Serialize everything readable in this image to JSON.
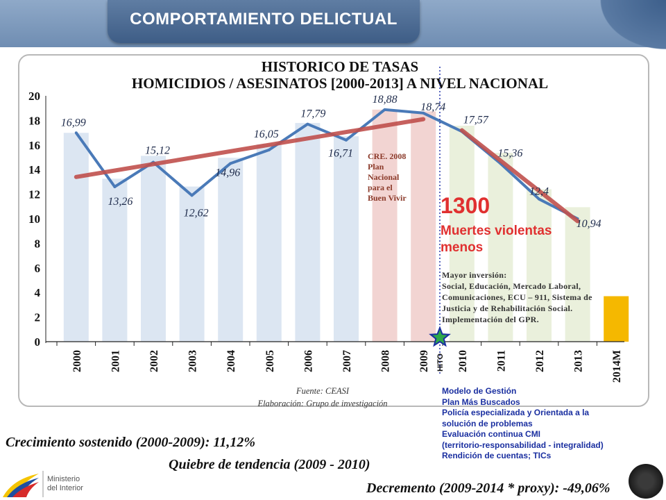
{
  "header": {
    "title": "COMPORTAMIENTO DELICTUAL"
  },
  "chart_titles": {
    "line1": "HISTORICO DE TASAS",
    "line2": "HOMICIDIOS / ASESINATOS [2000-2013] A NIVEL NACIONAL"
  },
  "source": {
    "fuente": "Fuente: CEASI",
    "elaboracion": "Elaboración: Grupo de investigación"
  },
  "annotations": {
    "cre": [
      "CRE. 2008",
      "Plan",
      "Nacional",
      "para el",
      "Buen Vivir"
    ],
    "big_number": "1300",
    "big_caption": "Muertes violentas menos",
    "inversion": [
      "Mayor inversión:",
      "Social, Educación, Mercado Laboral,",
      "Comunicaciones, ECU – 911, Sistema de",
      "Justicia y de Rehabilitación Social.",
      "Implementación del GPR."
    ],
    "modelo": [
      "Modelo de Gestión",
      "Plan Más Buscados",
      "Policía especializada y Orientada a la",
      "solución de problemas",
      "Evaluación continua CMI",
      "(territorio-responsabilidad  - integralidad)",
      "Rendición de cuentas; TICs"
    ],
    "hito": "HITO"
  },
  "statements": {
    "s1": "Crecimiento sostenido (2000-2009): 11,12%",
    "s2": "Quiebre de tendencia (2009 - 2010)",
    "s3": "Decremento (2009-2014 * proxy): -49,06%"
  },
  "logo": {
    "line1": "Ministerio",
    "line2": "del Interior"
  },
  "colors": {
    "line": "#4a7ab8",
    "trend": "#c0504d",
    "bar_default": "#dce6f2",
    "bar_crisis": "#f2d4d2",
    "bar_decline": "#eaf0dc",
    "bar_projection": "#f5b800",
    "hito_line": "#2233aa",
    "star_fill": "#2ea84a",
    "star_stroke": "#1a2fa0"
  },
  "chart_data": {
    "type": "bar",
    "categories": [
      "2000",
      "2001",
      "2002",
      "2003",
      "2004",
      "2005",
      "2006",
      "2007",
      "2008",
      "2009",
      "2010",
      "2011",
      "2012",
      "2013",
      "2014M"
    ],
    "ylim": [
      0,
      20
    ],
    "yticks": [
      0,
      2,
      4,
      6,
      8,
      10,
      12,
      14,
      16,
      18,
      20
    ],
    "bars": [
      16.99,
      13.26,
      15.12,
      12.62,
      14.96,
      16.05,
      17.79,
      16.71,
      18.88,
      18.74,
      17.57,
      15.36,
      12.4,
      10.94,
      3.7
    ],
    "bar_groups": [
      "default",
      "default",
      "default",
      "default",
      "default",
      "default",
      "default",
      "default",
      "crisis",
      "crisis",
      "decline",
      "decline",
      "decline",
      "decline",
      "projection"
    ],
    "line": {
      "type": "line",
      "values": [
        16.99,
        12.6,
        14.6,
        11.9,
        14.5,
        15.6,
        17.7,
        16.4,
        18.88,
        18.6,
        17.1,
        14.5,
        11.6,
        10.0
      ]
    },
    "data_labels": [
      "16,99",
      "13,26",
      "15,12",
      "12,62",
      "14,96",
      "16,05",
      "17,79",
      "16,71",
      "18,88",
      "18,74",
      "17,57",
      "15,36",
      "12,4",
      "10,94"
    ],
    "trend_growth": {
      "from": [
        0,
        13.4
      ],
      "to": [
        9,
        18.1
      ]
    },
    "trend_decline": {
      "from": [
        10,
        17.2
      ],
      "to": [
        13,
        9.8
      ]
    },
    "hito_between": [
      "2009",
      "2010"
    ]
  }
}
